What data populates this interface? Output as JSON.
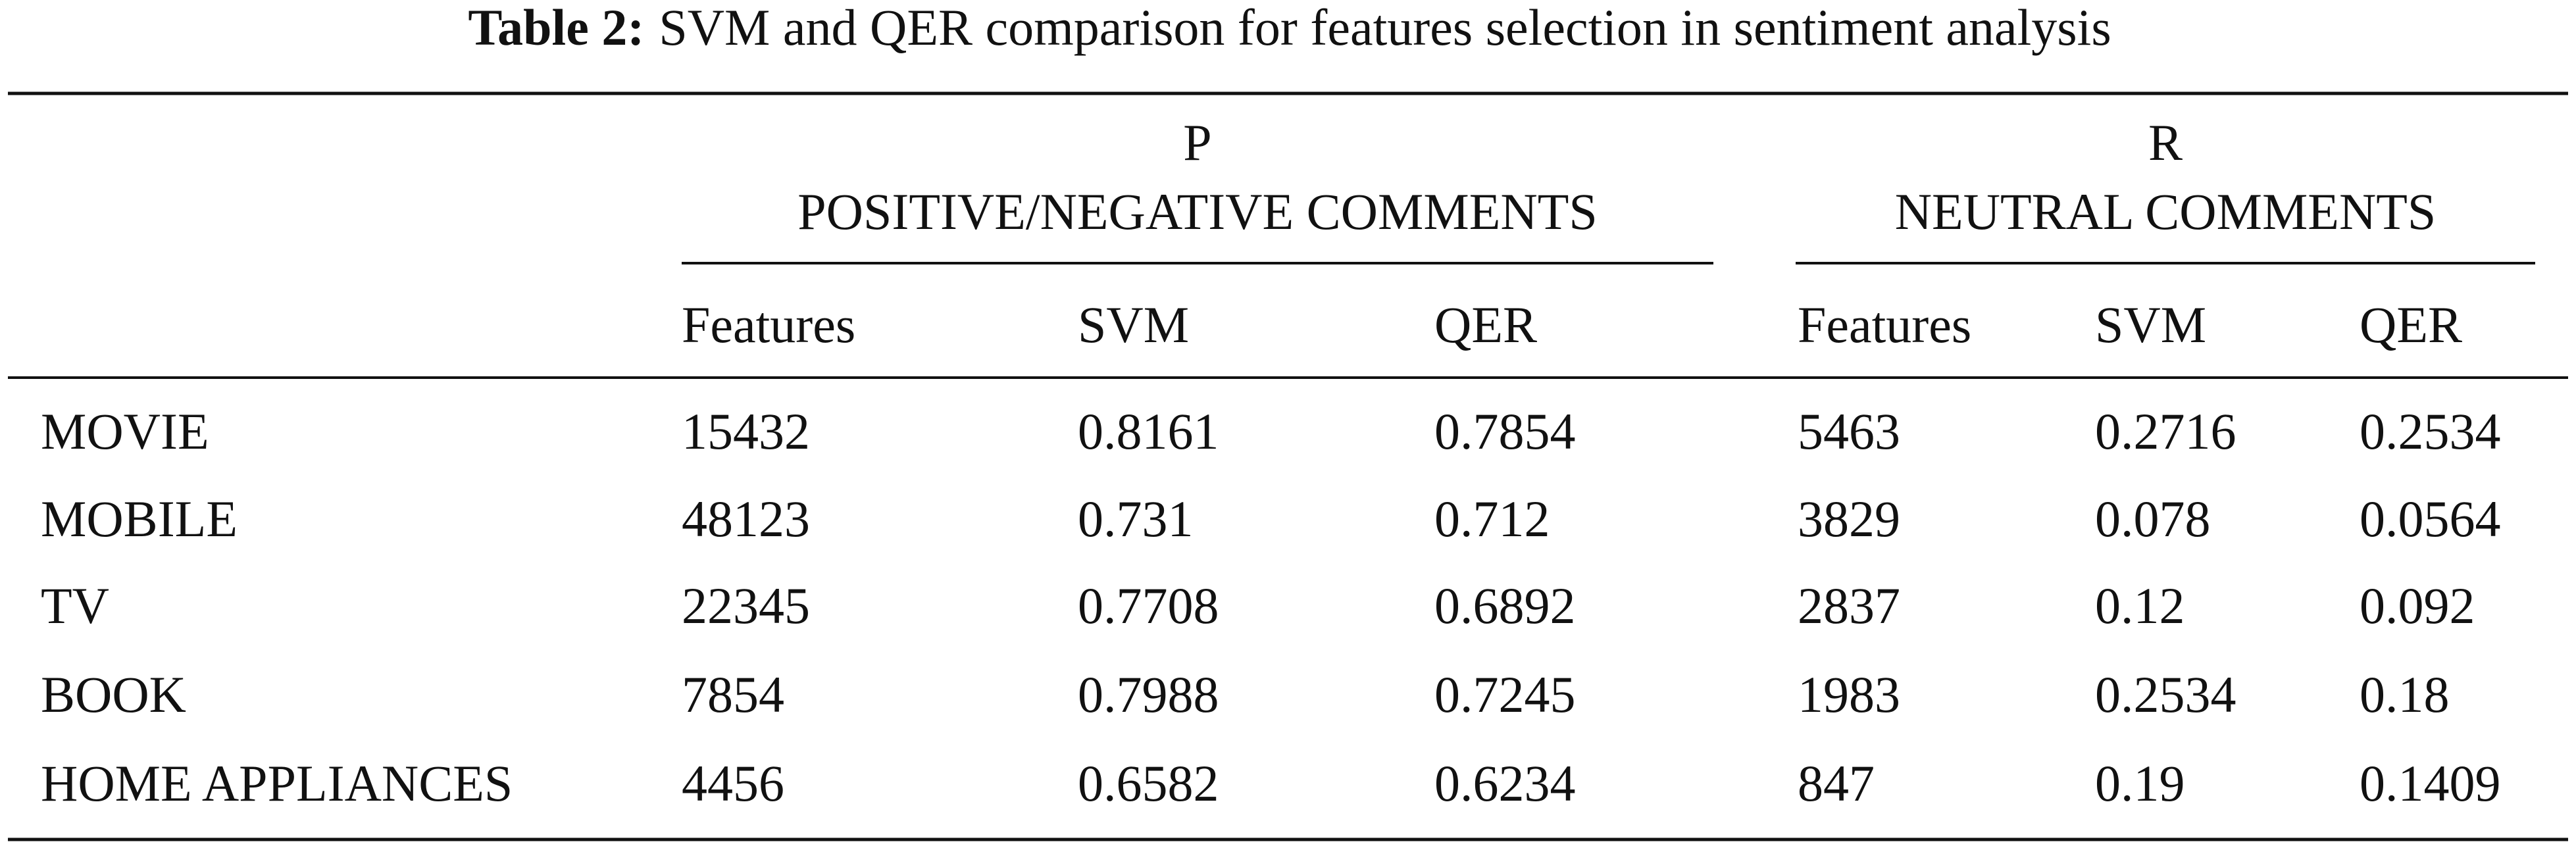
{
  "table": {
    "caption_label": "Table 2:",
    "caption": "SVM and QER comparison for features selection in sentiment analysis",
    "groups": [
      {
        "letter": "P",
        "title": "POSITIVE/NEGATIVE COMMENTS"
      },
      {
        "letter": "R",
        "title": "NEUTRAL COMMENTS"
      }
    ],
    "columns": [
      "Features",
      "SVM",
      "QER",
      "Features",
      "SVM",
      "QER"
    ],
    "rows": [
      [
        "MOVIE",
        "15432",
        "0.8161",
        "0.7854",
        "5463",
        "0.2716",
        "0.2534"
      ],
      [
        "MOBILE",
        "48123",
        "0.731",
        "0.712",
        "3829",
        "0.078",
        "0.0564"
      ],
      [
        "TV",
        "22345",
        "0.7708",
        "0.6892",
        "2837",
        "0.12",
        "0.092"
      ],
      [
        "BOOK",
        "7854",
        "0.7988",
        "0.7245",
        "1983",
        "0.2534",
        "0.18"
      ],
      [
        "HOME APPLIANCES",
        "4456",
        "0.6582",
        "0.6234",
        "847",
        "0.19",
        "0.1409"
      ]
    ]
  }
}
